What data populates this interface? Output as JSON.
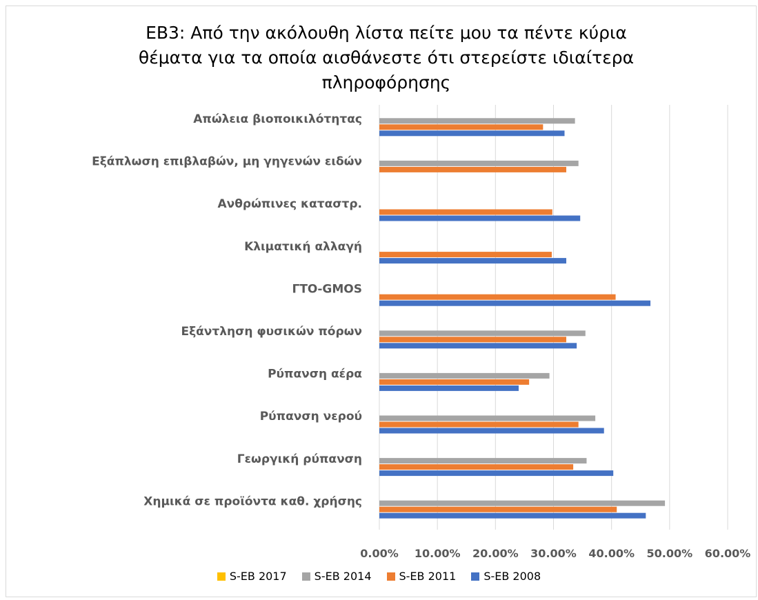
{
  "chart_data": {
    "type": "bar",
    "orientation": "horizontal",
    "title": "ΕΒ3: Από την ακόλουθη λίστα πείτε μου τα πέντε κύρια θέματα για τα οποία αισθάνεστε ότι στερείστε ιδιαίτερα πληροφόρησης",
    "title_lines": [
      "ΕΒ3: Από την ακόλουθη λίστα πείτε μου τα πέντε κύρια",
      "θέματα για τα οποία αισθάνεστε ότι στερείστε ιδιαίτερα",
      "πληροφόρησης"
    ],
    "categories": [
      "Απώλεια βιοποικιλότητας",
      "Εξάπλωση επιβλαβών, μη γηγενών ειδών",
      "Ανθρώπινες καταστρ.",
      "Κλιματική αλλαγή",
      "ΓΤΟ-GMOS",
      "Εξάντληση φυσικών πόρων",
      "Ρύπανση αέρα",
      "Ρύπανση νερού",
      "Γεωργική ρύπανση",
      "Χημικά σε προϊόντα καθ. χρήσης"
    ],
    "series": [
      {
        "name": "S-EB 2017",
        "color": "#FFC000",
        "values": [
          null,
          null,
          null,
          null,
          null,
          null,
          null,
          null,
          null,
          null
        ]
      },
      {
        "name": "S-EB 2014",
        "color": "#A5A5A5",
        "values": [
          0.337,
          0.343,
          null,
          null,
          null,
          0.355,
          0.293,
          0.372,
          0.357,
          0.492
        ]
      },
      {
        "name": "S-EB 2011",
        "color": "#ED7D31",
        "values": [
          0.282,
          0.322,
          0.298,
          0.297,
          0.407,
          0.322,
          0.258,
          0.343,
          0.334,
          0.409
        ]
      },
      {
        "name": "S-EB 2008",
        "color": "#4472C4",
        "values": [
          0.319,
          null,
          0.346,
          0.322,
          0.467,
          0.34,
          0.24,
          0.387,
          0.403,
          0.459
        ]
      }
    ],
    "xticks": [
      "0.00%",
      "10.00%",
      "20.00%",
      "30.00%",
      "40.00%",
      "50.00%",
      "60.00%"
    ],
    "xlim": [
      0,
      0.6
    ],
    "legend_position": "bottom",
    "grid": true
  }
}
